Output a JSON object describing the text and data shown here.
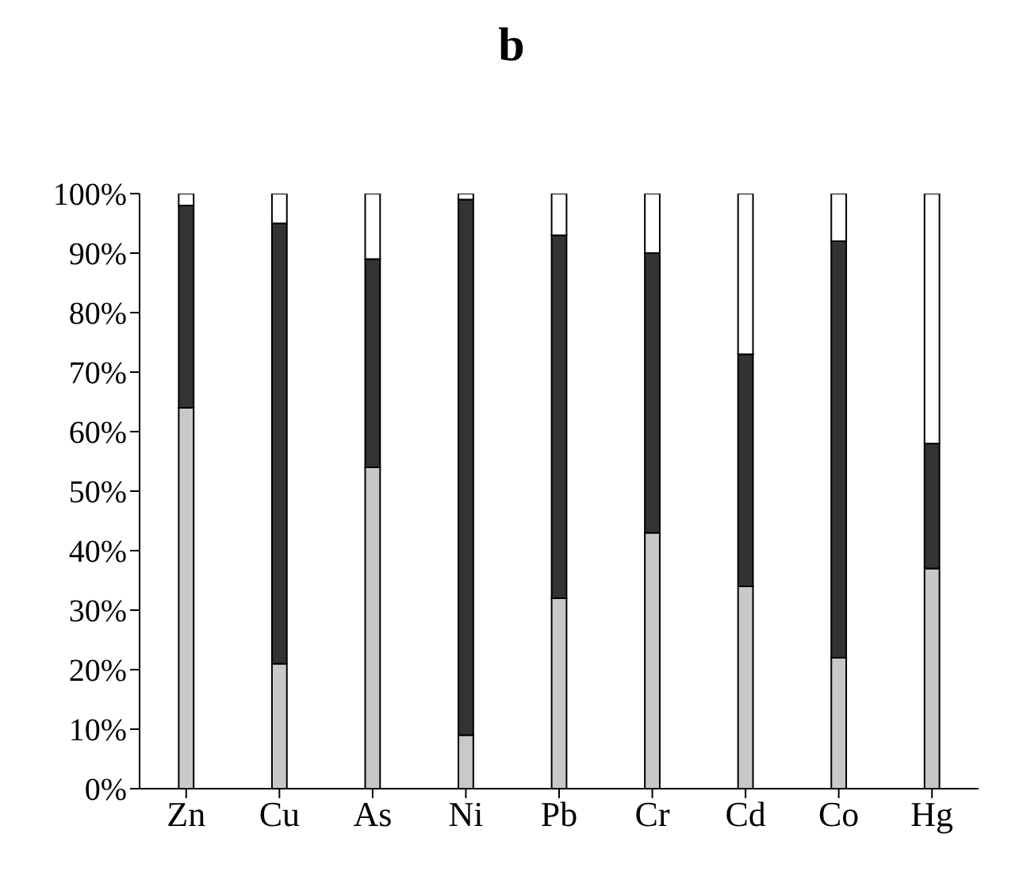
{
  "chart_data": {
    "type": "bar",
    "title": "b",
    "stacked": true,
    "categories": [
      "Zn",
      "Cu",
      "As",
      "Ni",
      "Pb",
      "Cr",
      "Cd",
      "Co",
      "Hg"
    ],
    "series": [
      {
        "color": "#c8c8c8",
        "values": [
          64,
          21,
          54,
          9,
          32,
          43,
          34,
          22,
          37
        ]
      },
      {
        "color": "#333333",
        "values": [
          34,
          74,
          35,
          90,
          61,
          47,
          39,
          70,
          21
        ]
      },
      {
        "color": "#ffffff",
        "values": [
          2,
          5,
          11,
          1,
          7,
          10,
          27,
          8,
          42
        ]
      }
    ],
    "ylim": [
      0,
      100
    ],
    "yticks": [
      {
        "value": 0,
        "label": "0%"
      },
      {
        "value": 10,
        "label": "10%"
      },
      {
        "value": 20,
        "label": "20%"
      },
      {
        "value": 30,
        "label": "30%"
      },
      {
        "value": 40,
        "label": "40%"
      },
      {
        "value": 50,
        "label": "50%"
      },
      {
        "value": 60,
        "label": "60%"
      },
      {
        "value": 70,
        "label": "70%"
      },
      {
        "value": 80,
        "label": "80%"
      },
      {
        "value": 90,
        "label": "90%"
      },
      {
        "value": 100,
        "label": "100%"
      }
    ],
    "grid": false,
    "legend": false
  }
}
